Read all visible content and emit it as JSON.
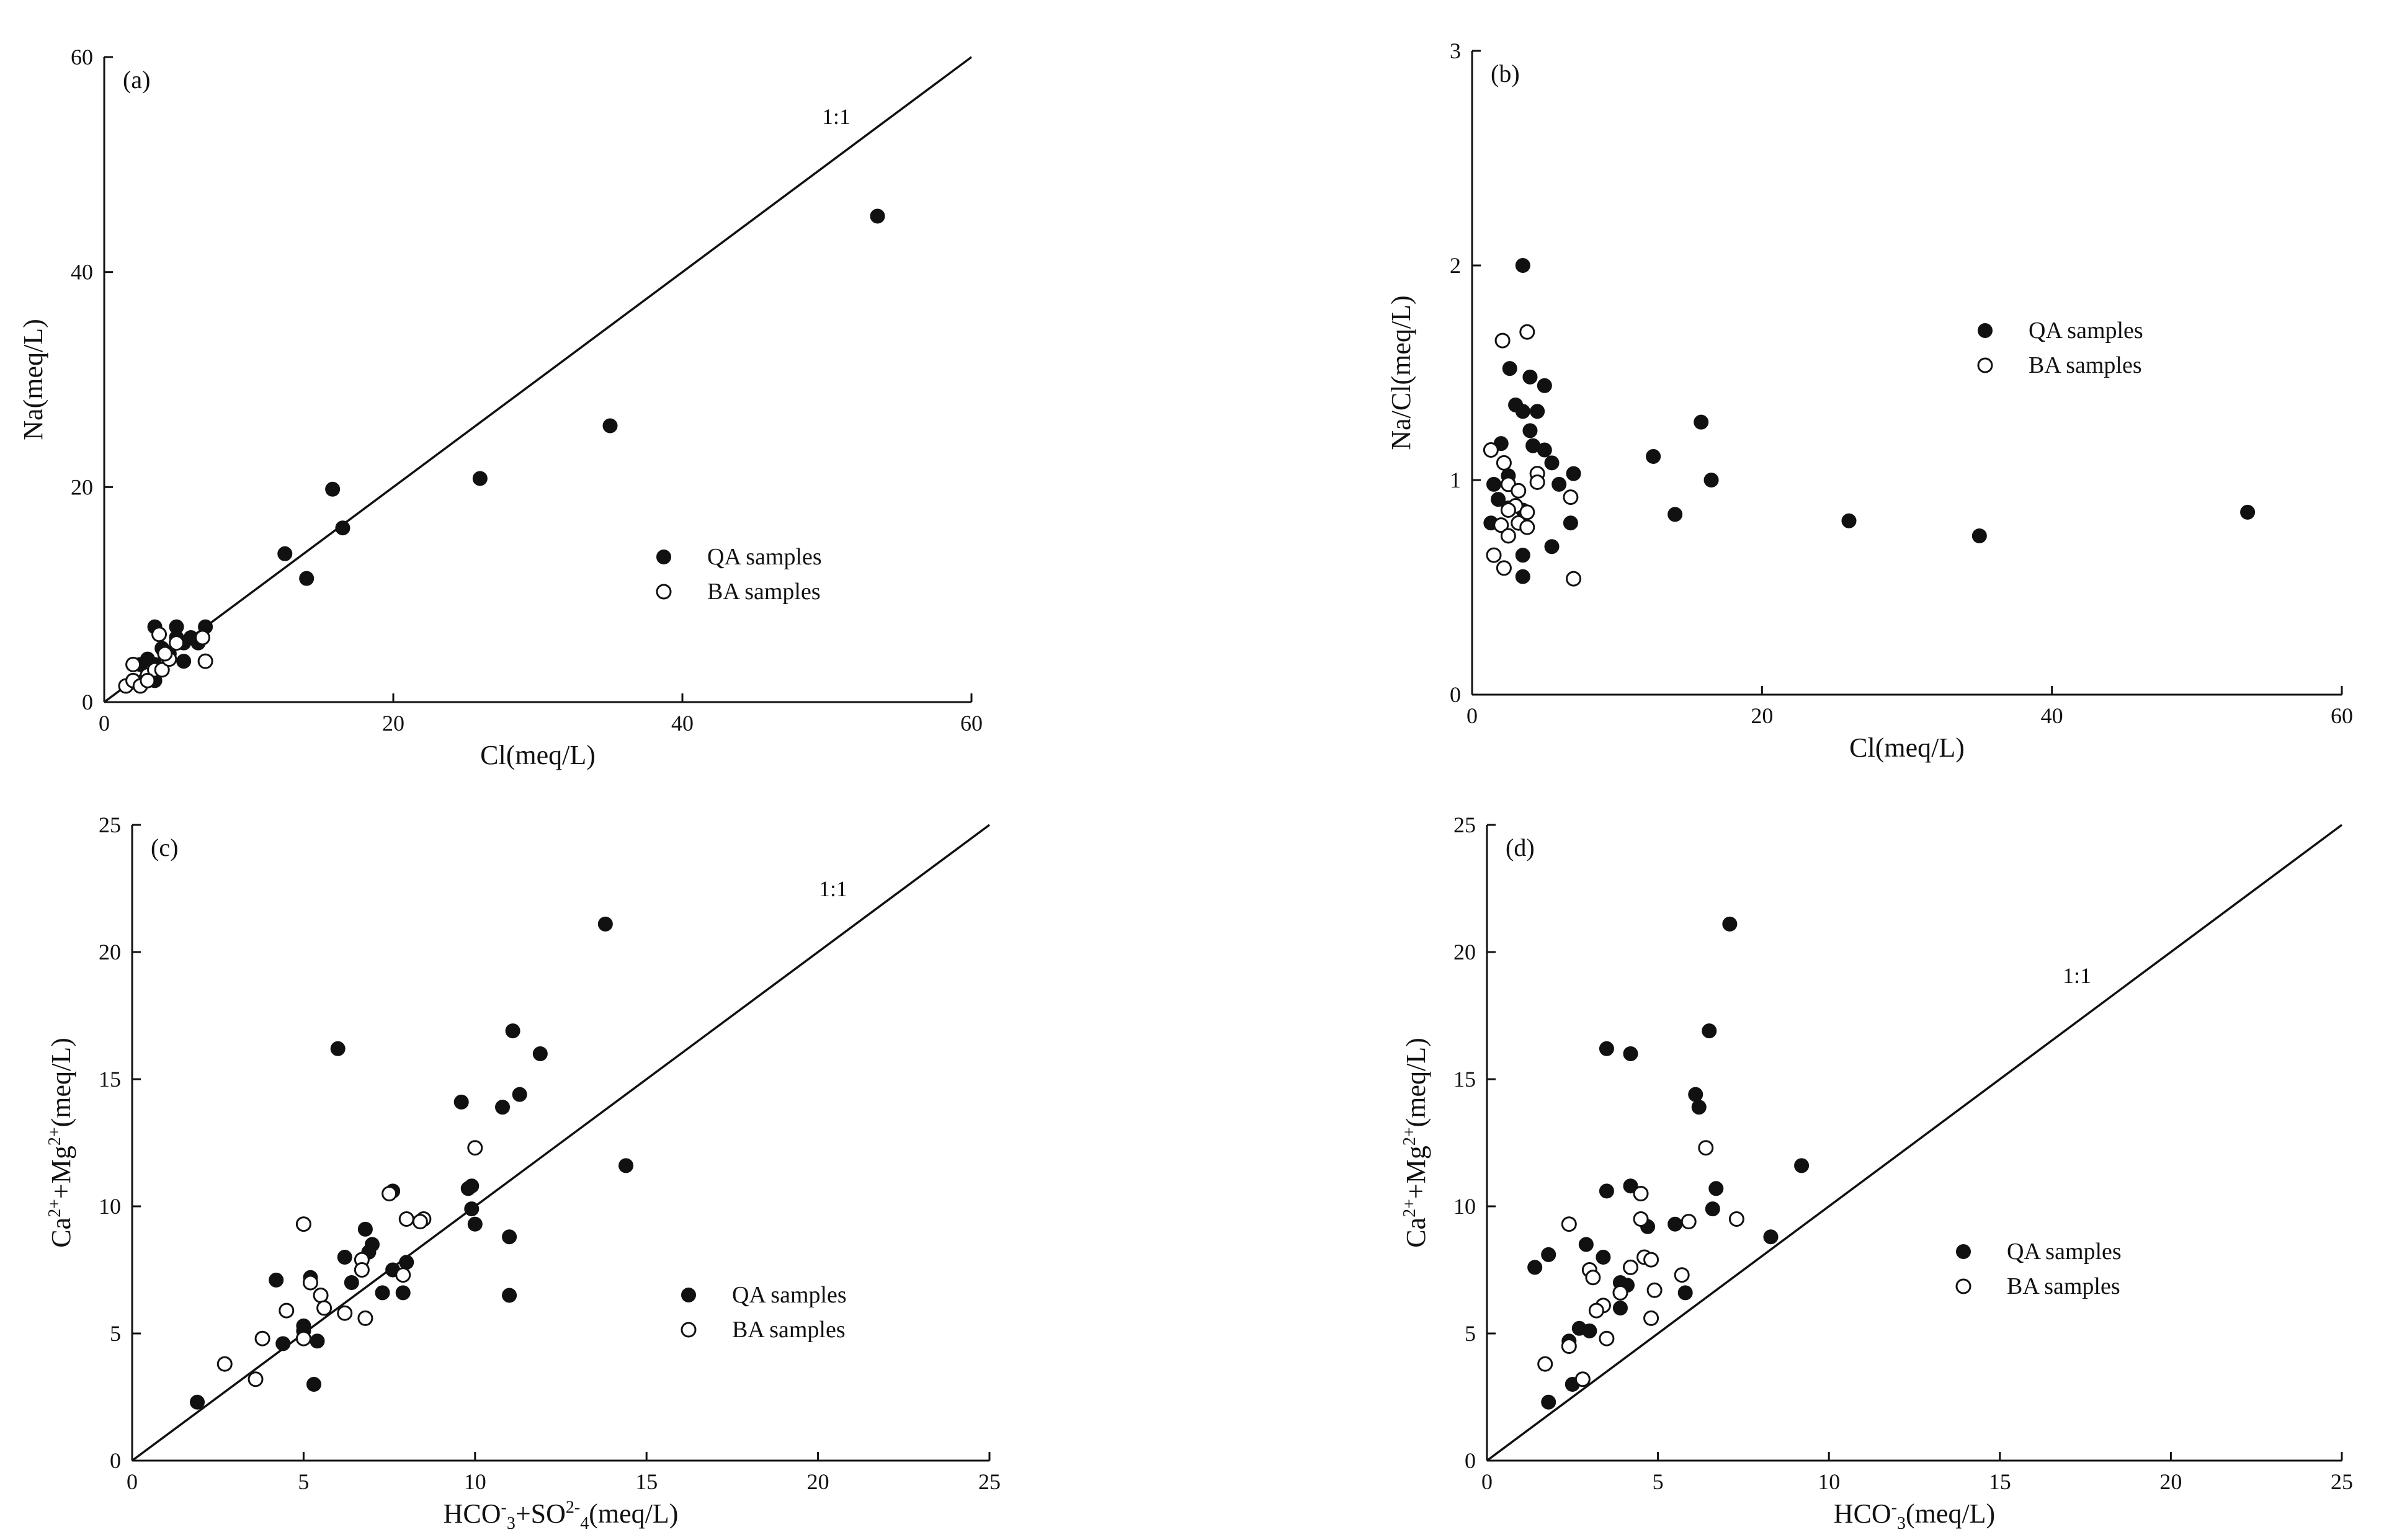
{
  "chart_data": [
    {
      "id": "a",
      "type": "scatter",
      "panel_label": "(a)",
      "xlabel": "Cl(meq/L)",
      "ylabel": "Na(meq/L)",
      "xlim": [
        0,
        60
      ],
      "ylim": [
        0,
        60
      ],
      "xticks": [
        "0",
        "20",
        "40",
        "60"
      ],
      "yticks": [
        "0",
        "20",
        "40",
        "60"
      ],
      "ref_line": {
        "label": "1:1",
        "from": [
          0,
          0
        ],
        "to": [
          60,
          60
        ]
      },
      "legend": [
        {
          "label": "QA samples",
          "style": "filled"
        },
        {
          "label": "BA samples",
          "style": "open"
        }
      ],
      "series": [
        {
          "name": "QA samples",
          "style": "filled",
          "points": [
            [
              3.5,
              7.0
            ],
            [
              5.0,
              7.0
            ],
            [
              7.0,
              7.0
            ],
            [
              3.0,
              4.0
            ],
            [
              3.5,
              3.5
            ],
            [
              4.5,
              4.5
            ],
            [
              5.0,
              6.0
            ],
            [
              5.5,
              5.5
            ],
            [
              6.0,
              6.0
            ],
            [
              4.0,
              5.0
            ],
            [
              2.5,
              3.5
            ],
            [
              3.5,
              2.0
            ],
            [
              5.5,
              3.8
            ],
            [
              6.5,
              5.5
            ],
            [
              12.5,
              13.8
            ],
            [
              14.0,
              11.5
            ],
            [
              15.8,
              19.8
            ],
            [
              16.5,
              16.2
            ],
            [
              26.0,
              20.8
            ],
            [
              35.0,
              25.7
            ],
            [
              53.5,
              45.2
            ]
          ]
        },
        {
          "name": "BA samples",
          "style": "open",
          "points": [
            [
              1.5,
              1.5
            ],
            [
              2.0,
              2.0
            ],
            [
              2.5,
              1.5
            ],
            [
              3.0,
              2.5
            ],
            [
              2.0,
              3.5
            ],
            [
              3.5,
              3.0
            ],
            [
              4.0,
              3.0
            ],
            [
              4.5,
              4.0
            ],
            [
              7.0,
              3.8
            ],
            [
              3.8,
              6.3
            ],
            [
              6.8,
              6.0
            ],
            [
              5.0,
              5.5
            ],
            [
              3.0,
              2.0
            ],
            [
              4.2,
              4.5
            ]
          ]
        }
      ]
    },
    {
      "id": "b",
      "type": "scatter",
      "panel_label": "(b)",
      "xlabel": "Cl(meq/L)",
      "ylabel": "Na/Cl(meq/L)",
      "xlim": [
        0,
        60
      ],
      "ylim": [
        0,
        3
      ],
      "xticks": [
        "0",
        "20",
        "40",
        "60"
      ],
      "yticks": [
        "0",
        "1",
        "2",
        "3"
      ],
      "legend": [
        {
          "label": "QA samples",
          "style": "filled"
        },
        {
          "label": "BA samples",
          "style": "open"
        }
      ],
      "series": [
        {
          "name": "QA samples",
          "style": "filled",
          "points": [
            [
              3.5,
              2.0
            ],
            [
              2.6,
              1.52
            ],
            [
              4.0,
              1.48
            ],
            [
              5.0,
              1.44
            ],
            [
              3.0,
              1.35
            ],
            [
              3.5,
              1.32
            ],
            [
              4.5,
              1.32
            ],
            [
              4.0,
              1.23
            ],
            [
              2.0,
              1.17
            ],
            [
              4.2,
              1.16
            ],
            [
              5.0,
              1.14
            ],
            [
              5.5,
              1.08
            ],
            [
              7.0,
              1.03
            ],
            [
              2.5,
              1.02
            ],
            [
              1.5,
              0.98
            ],
            [
              6.0,
              0.98
            ],
            [
              1.8,
              0.91
            ],
            [
              2.5,
              0.87
            ],
            [
              3.5,
              0.86
            ],
            [
              6.8,
              0.8
            ],
            [
              1.3,
              0.8
            ],
            [
              5.5,
              0.69
            ],
            [
              3.5,
              0.65
            ],
            [
              3.5,
              0.55
            ],
            [
              12.5,
              1.11
            ],
            [
              15.8,
              1.27
            ],
            [
              16.5,
              1.0
            ],
            [
              14.0,
              0.84
            ],
            [
              26.0,
              0.81
            ],
            [
              35.0,
              0.74
            ],
            [
              53.5,
              0.85
            ]
          ]
        },
        {
          "name": "BA samples",
          "style": "open",
          "points": [
            [
              3.8,
              1.69
            ],
            [
              2.1,
              1.65
            ],
            [
              1.3,
              1.14
            ],
            [
              2.2,
              1.08
            ],
            [
              4.5,
              1.03
            ],
            [
              4.5,
              0.99
            ],
            [
              2.5,
              0.98
            ],
            [
              3.2,
              0.95
            ],
            [
              6.8,
              0.92
            ],
            [
              3.0,
              0.88
            ],
            [
              2.5,
              0.86
            ],
            [
              3.8,
              0.85
            ],
            [
              3.2,
              0.8
            ],
            [
              2.0,
              0.79
            ],
            [
              3.8,
              0.78
            ],
            [
              2.5,
              0.74
            ],
            [
              1.5,
              0.65
            ],
            [
              2.2,
              0.59
            ],
            [
              7.0,
              0.54
            ]
          ]
        }
      ]
    },
    {
      "id": "c",
      "type": "scatter",
      "panel_label": "(c)",
      "xlabel": "HCO3- + SO42- (meq/L)",
      "ylabel": "Ca2+ + Mg2+ (meq/L)",
      "xlim": [
        0,
        25
      ],
      "ylim": [
        0,
        25
      ],
      "xticks": [
        "0",
        "5",
        "10",
        "15",
        "20",
        "25"
      ],
      "yticks": [
        "0",
        "5",
        "10",
        "15",
        "20",
        "25"
      ],
      "ref_line": {
        "label": "1:1",
        "from": [
          0,
          0
        ],
        "to": [
          25,
          25
        ]
      },
      "legend": [
        {
          "label": "QA samples",
          "style": "filled"
        },
        {
          "label": "BA samples",
          "style": "open"
        }
      ],
      "series": [
        {
          "name": "QA samples",
          "style": "filled",
          "points": [
            [
              13.8,
              21.1
            ],
            [
              6.0,
              16.2
            ],
            [
              11.1,
              16.9
            ],
            [
              11.9,
              16.0
            ],
            [
              9.6,
              14.1
            ],
            [
              11.3,
              14.4
            ],
            [
              10.8,
              13.9
            ],
            [
              14.4,
              11.6
            ],
            [
              9.8,
              10.7
            ],
            [
              9.9,
              10.8
            ],
            [
              7.6,
              10.6
            ],
            [
              9.9,
              9.9
            ],
            [
              10.0,
              9.3
            ],
            [
              11.0,
              8.8
            ],
            [
              6.8,
              9.1
            ],
            [
              7.0,
              8.5
            ],
            [
              6.9,
              8.2
            ],
            [
              6.2,
              8.0
            ],
            [
              8.0,
              7.8
            ],
            [
              7.6,
              7.5
            ],
            [
              4.2,
              7.1
            ],
            [
              5.2,
              7.2
            ],
            [
              6.4,
              7.0
            ],
            [
              7.3,
              6.6
            ],
            [
              7.9,
              6.6
            ],
            [
              11.0,
              6.5
            ],
            [
              5.0,
              5.3
            ],
            [
              5.0,
              5.1
            ],
            [
              5.4,
              4.7
            ],
            [
              4.4,
              4.6
            ],
            [
              5.3,
              3.0
            ],
            [
              1.9,
              2.3
            ]
          ]
        },
        {
          "name": "BA samples",
          "style": "open",
          "points": [
            [
              10.0,
              12.3
            ],
            [
              7.5,
              10.5
            ],
            [
              5.0,
              9.3
            ],
            [
              8.0,
              9.5
            ],
            [
              8.5,
              9.5
            ],
            [
              8.4,
              9.4
            ],
            [
              6.7,
              7.9
            ],
            [
              7.9,
              7.3
            ],
            [
              5.2,
              7.0
            ],
            [
              6.7,
              7.5
            ],
            [
              5.5,
              6.5
            ],
            [
              5.6,
              6.0
            ],
            [
              6.2,
              5.8
            ],
            [
              4.5,
              5.9
            ],
            [
              6.8,
              5.6
            ],
            [
              3.8,
              4.8
            ],
            [
              5.0,
              4.8
            ],
            [
              2.7,
              3.8
            ],
            [
              3.6,
              3.2
            ]
          ]
        }
      ]
    },
    {
      "id": "d",
      "type": "scatter",
      "panel_label": "(d)",
      "xlabel": "HCO3- (meq/L)",
      "ylabel": "Ca2+ + Mg2+ (meq/L)",
      "xlim": [
        0,
        25
      ],
      "ylim": [
        0,
        25
      ],
      "xticks": [
        "0",
        "5",
        "10",
        "15",
        "20",
        "25"
      ],
      "yticks": [
        "0",
        "5",
        "10",
        "15",
        "20",
        "25"
      ],
      "ref_line": {
        "label": "1:1",
        "from": [
          0,
          0
        ],
        "to": [
          25,
          25
        ]
      },
      "legend": [
        {
          "label": "QA samples",
          "style": "filled"
        },
        {
          "label": "BA samples",
          "style": "open"
        }
      ],
      "series": [
        {
          "name": "QA samples",
          "style": "filled",
          "points": [
            [
              7.1,
              21.1
            ],
            [
              3.5,
              16.2
            ],
            [
              4.2,
              16.0
            ],
            [
              6.5,
              16.9
            ],
            [
              6.1,
              14.4
            ],
            [
              6.2,
              13.9
            ],
            [
              9.2,
              11.6
            ],
            [
              4.2,
              10.8
            ],
            [
              6.7,
              10.7
            ],
            [
              3.5,
              10.6
            ],
            [
              6.6,
              9.9
            ],
            [
              5.5,
              9.3
            ],
            [
              4.7,
              9.2
            ],
            [
              8.3,
              8.8
            ],
            [
              2.9,
              8.5
            ],
            [
              3.4,
              8.0
            ],
            [
              1.8,
              8.1
            ],
            [
              1.4,
              7.6
            ],
            [
              3.9,
              7.0
            ],
            [
              4.1,
              6.9
            ],
            [
              5.8,
              6.6
            ],
            [
              3.9,
              6.0
            ],
            [
              2.7,
              5.2
            ],
            [
              3.0,
              5.1
            ],
            [
              2.4,
              4.7
            ],
            [
              1.8,
              2.3
            ],
            [
              2.5,
              3.0
            ]
          ]
        },
        {
          "name": "BA samples",
          "style": "open",
          "points": [
            [
              6.4,
              12.3
            ],
            [
              4.5,
              10.5
            ],
            [
              2.4,
              9.3
            ],
            [
              4.5,
              9.5
            ],
            [
              5.9,
              9.4
            ],
            [
              7.3,
              9.5
            ],
            [
              4.6,
              8.0
            ],
            [
              4.8,
              7.9
            ],
            [
              4.2,
              7.6
            ],
            [
              3.0,
              7.5
            ],
            [
              3.1,
              7.2
            ],
            [
              5.7,
              7.3
            ],
            [
              3.9,
              6.6
            ],
            [
              4.9,
              6.7
            ],
            [
              3.4,
              6.1
            ],
            [
              3.2,
              5.9
            ],
            [
              4.8,
              5.6
            ],
            [
              3.5,
              4.8
            ],
            [
              2.4,
              4.5
            ],
            [
              1.7,
              3.8
            ],
            [
              2.8,
              3.2
            ]
          ]
        }
      ]
    }
  ]
}
